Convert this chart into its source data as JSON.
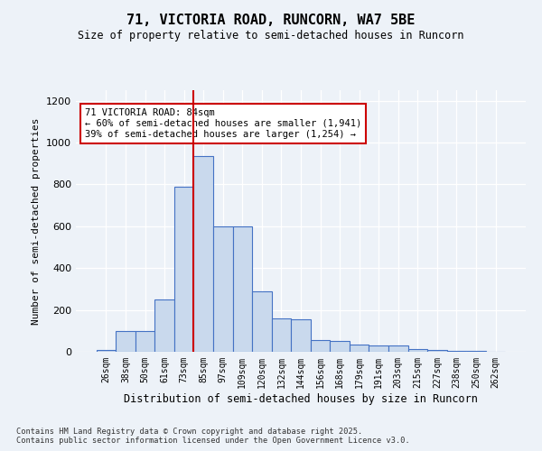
{
  "title_line1": "71, VICTORIA ROAD, RUNCORN, WA7 5BE",
  "title_line2": "Size of property relative to semi-detached houses in Runcorn",
  "xlabel": "Distribution of semi-detached houses by size in Runcorn",
  "ylabel": "Number of semi-detached properties",
  "categories": [
    "26sqm",
    "38sqm",
    "50sqm",
    "61sqm",
    "73sqm",
    "85sqm",
    "97sqm",
    "109sqm",
    "120sqm",
    "132sqm",
    "144sqm",
    "156sqm",
    "168sqm",
    "179sqm",
    "191sqm",
    "203sqm",
    "215sqm",
    "227sqm",
    "238sqm",
    "250sqm",
    "262sqm"
  ],
  "bar_heights": [
    10,
    100,
    100,
    250,
    790,
    935,
    600,
    600,
    290,
    160,
    155,
    55,
    50,
    35,
    30,
    30,
    13,
    10,
    5,
    3,
    1
  ],
  "bar_color": "#c9d9ed",
  "bar_edge_color": "#4472c4",
  "red_line_index": 5,
  "annotation_text": "71 VICTORIA ROAD: 84sqm\n← 60% of semi-detached houses are smaller (1,941)\n39% of semi-detached houses are larger (1,254) →",
  "annotation_box_color": "#ffffff",
  "annotation_box_edge": "#cc0000",
  "ylim": [
    0,
    1250
  ],
  "yticks": [
    0,
    200,
    400,
    600,
    800,
    1000,
    1200
  ],
  "footer1": "Contains HM Land Registry data © Crown copyright and database right 2025.",
  "footer2": "Contains public sector information licensed under the Open Government Licence v3.0.",
  "bg_color": "#edf2f8"
}
